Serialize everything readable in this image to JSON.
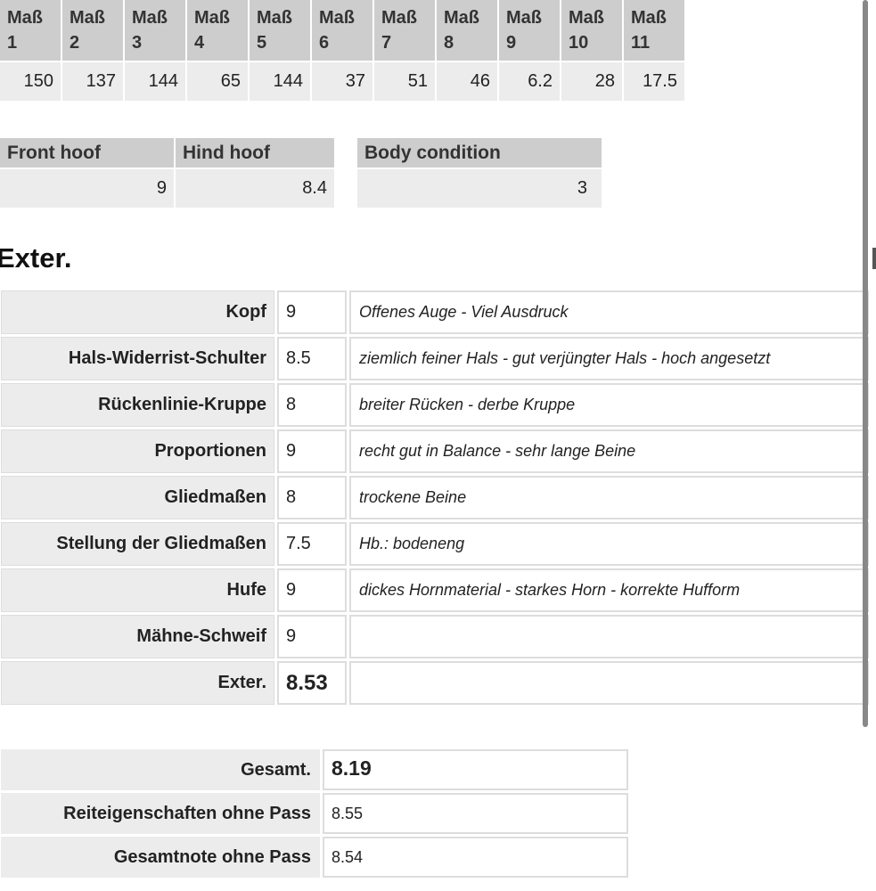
{
  "measurements": {
    "headers": [
      "Maß 1",
      "Maß 2",
      "Maß 3",
      "Maß 4",
      "Maß 5",
      "Maß 6",
      "Maß 7",
      "Maß 8",
      "Maß 9",
      "Maß 10",
      "Maß 11"
    ],
    "values": [
      "150",
      "137",
      "144",
      "65",
      "144",
      "37",
      "51",
      "46",
      "6.2",
      "28",
      "17.5"
    ]
  },
  "hoof": {
    "front_label": "Front hoof",
    "hind_label": "Hind hoof",
    "front": "9",
    "hind": "8.4"
  },
  "body_condition": {
    "label": "Body condition",
    "value": "3"
  },
  "exterior": {
    "title": "Exter.",
    "rows": [
      {
        "label": "Kopf",
        "score": "9",
        "comment": "Offenes Auge - Viel Ausdruck"
      },
      {
        "label": "Hals-Widerrist-Schulter",
        "score": "8.5",
        "comment": "ziemlich feiner Hals - gut verjüngter Hals - hoch angesetzt"
      },
      {
        "label": "Rückenlinie-Kruppe",
        "score": "8",
        "comment": "breiter Rücken - derbe Kruppe"
      },
      {
        "label": "Proportionen",
        "score": "9",
        "comment": "recht gut in Balance - sehr lange Beine"
      },
      {
        "label": "Gliedmaßen",
        "score": "8",
        "comment": "trockene Beine"
      },
      {
        "label": "Stellung der Gliedmaßen",
        "score": "7.5",
        "comment": "Hb.: bodeneng"
      },
      {
        "label": "Hufe",
        "score": "9",
        "comment": "dickes Hornmaterial - starkes Horn - korrekte Hufform"
      },
      {
        "label": "Mähne-Schweif",
        "score": "9",
        "comment": ""
      },
      {
        "label": "Exter.",
        "score": "8.53",
        "comment": ""
      }
    ]
  },
  "totals": [
    {
      "label": "Gesamt.",
      "value": "8.19"
    },
    {
      "label": "Reiteigenschaften ohne Pass",
      "value": "8.55"
    },
    {
      "label": "Gesamtnote ohne Pass",
      "value": "8.54"
    }
  ]
}
